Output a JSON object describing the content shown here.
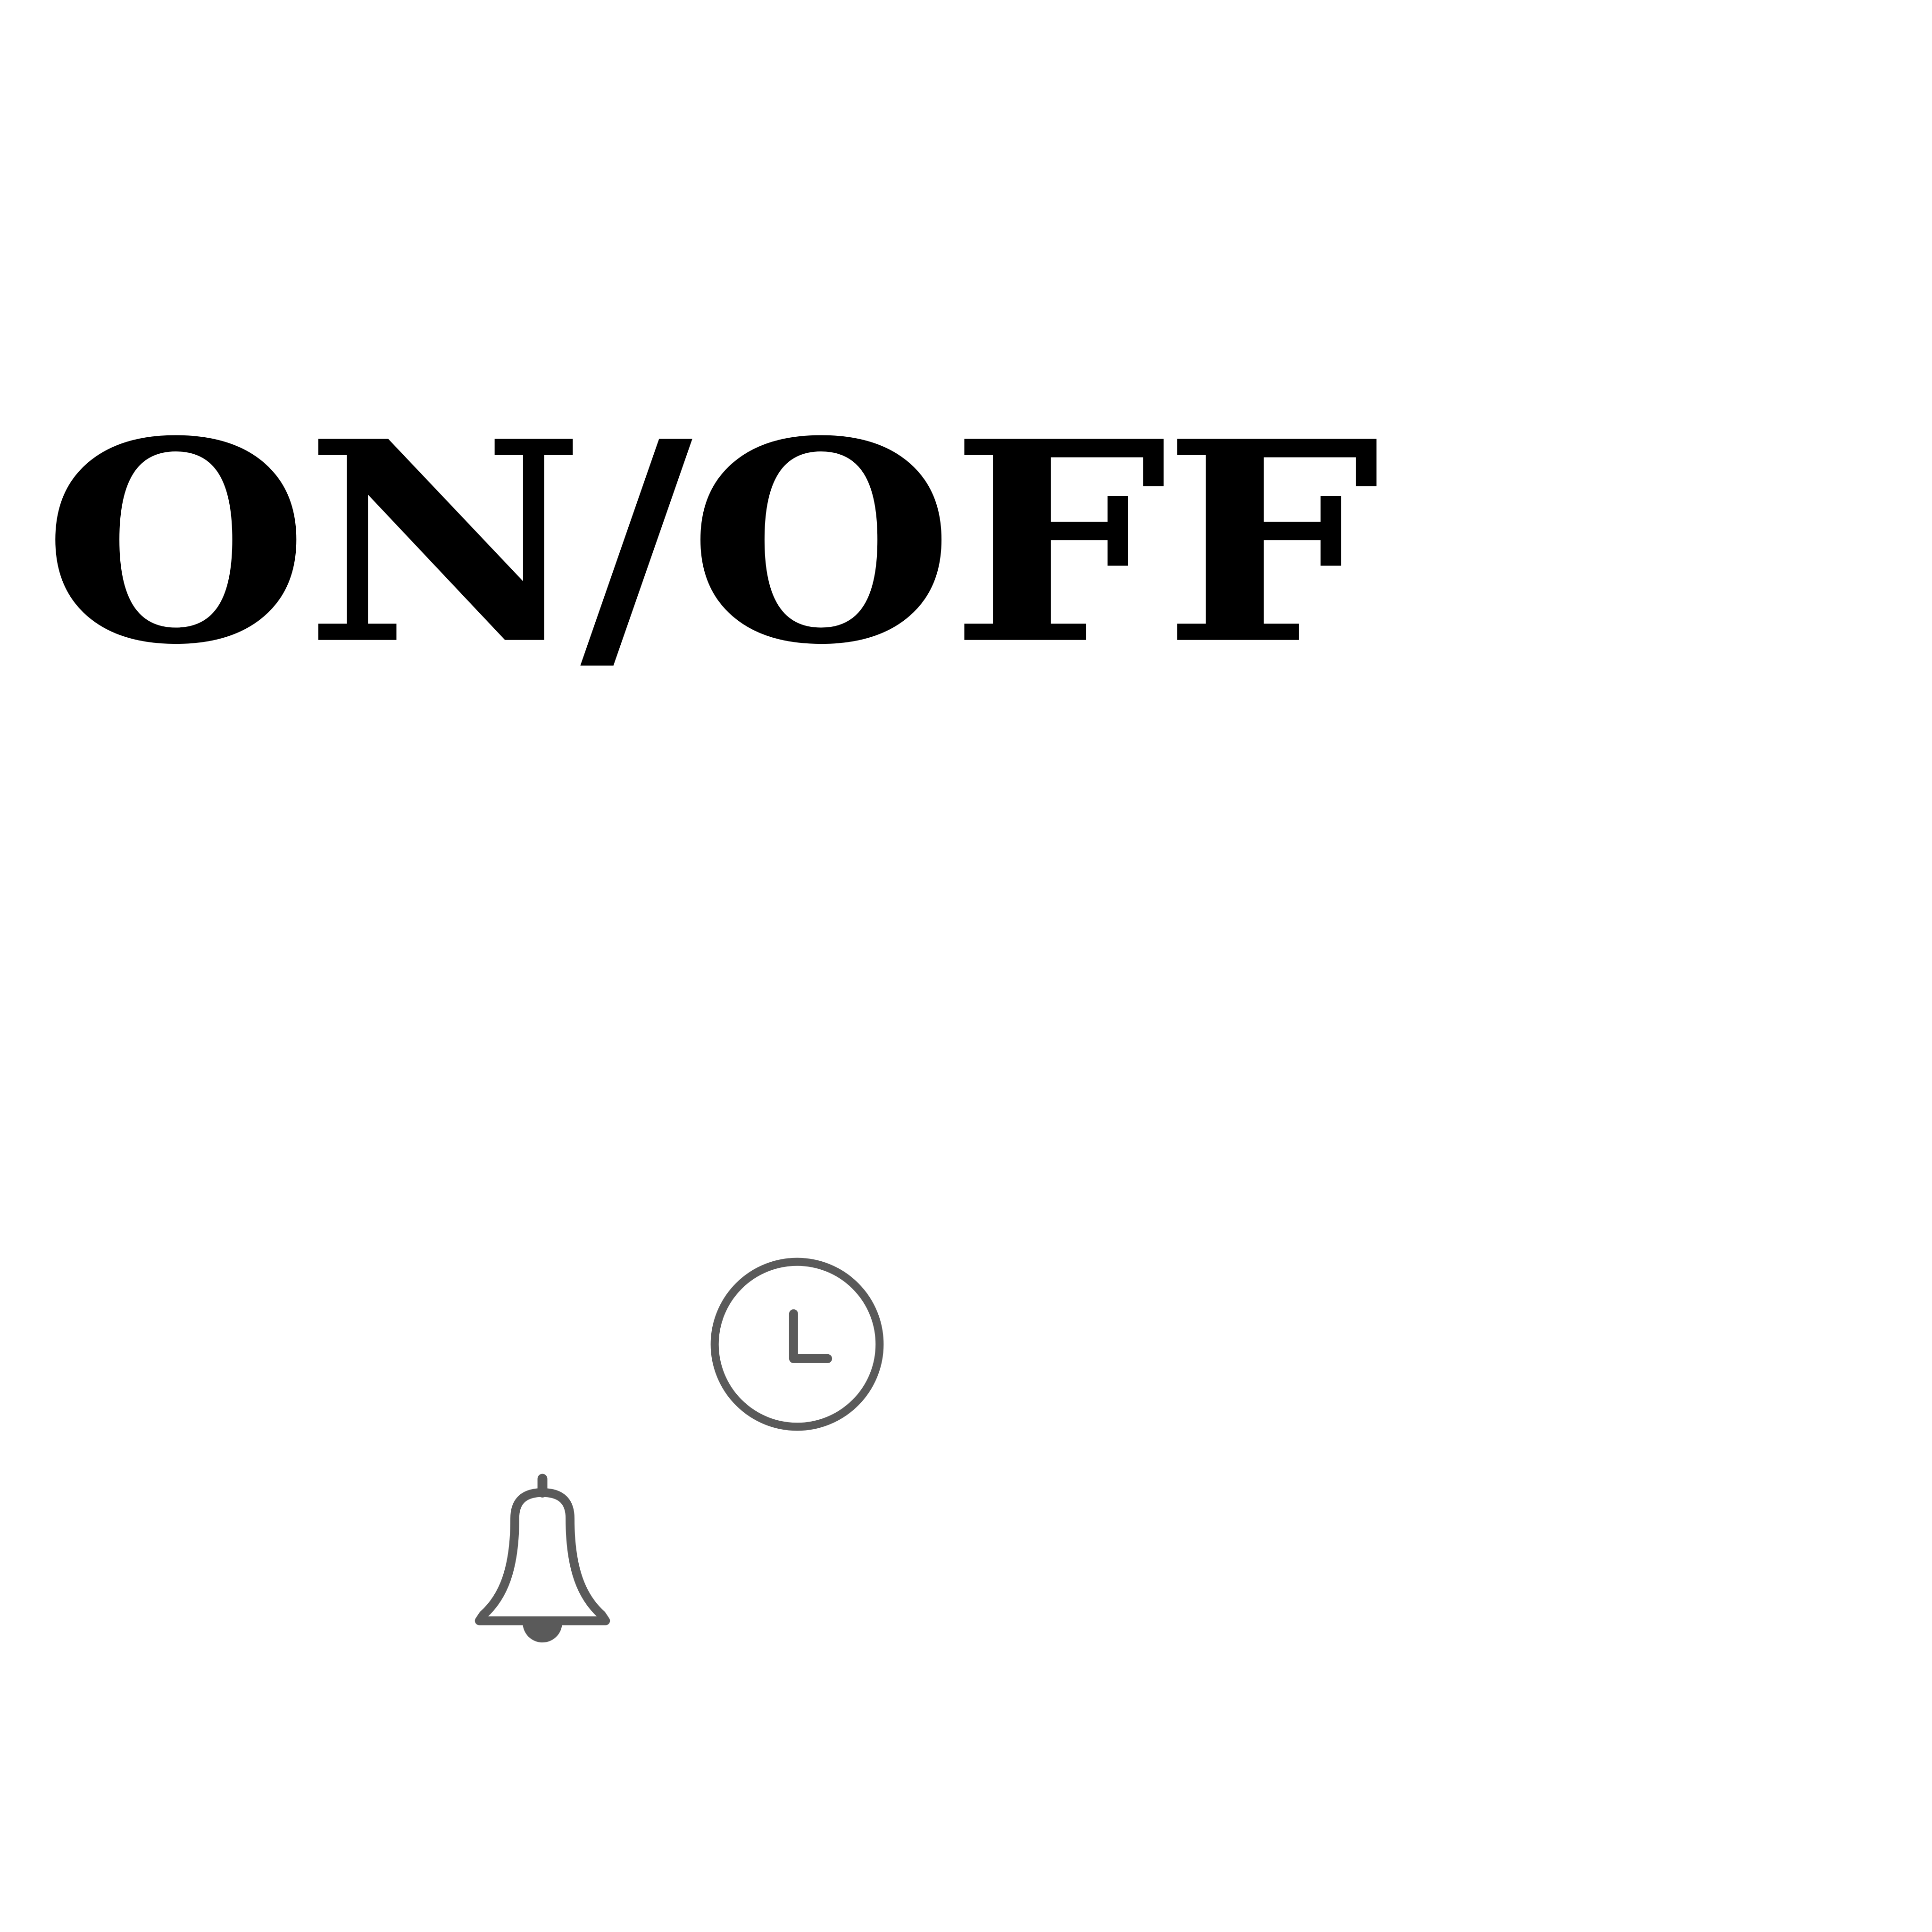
{
  "header": {
    "title": "ON/OFF"
  },
  "icons": {
    "clock": "clock-icon",
    "bell": "bell-icon",
    "stroke_color": "#5a5a5a",
    "text_color": "#000000",
    "background": "#ffffff"
  }
}
